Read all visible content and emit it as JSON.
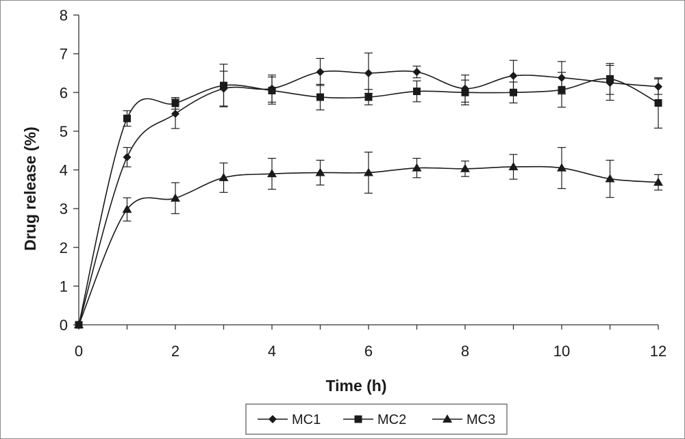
{
  "chart_data": {
    "type": "line",
    "title": "",
    "xlabel": "Time (h)",
    "ylabel": "Drug release (%)",
    "xlim": [
      0,
      12
    ],
    "ylim": [
      0,
      8
    ],
    "x_ticks": [
      "0",
      "2",
      "4",
      "6",
      "8",
      "10",
      "12"
    ],
    "y_ticks": [
      "0",
      "1",
      "2",
      "3",
      "4",
      "5",
      "6",
      "7",
      "8"
    ],
    "grid": false,
    "legend_position": "bottom",
    "x": [
      0,
      1,
      2,
      3,
      4,
      5,
      6,
      7,
      8,
      9,
      10,
      11,
      12
    ],
    "series": [
      {
        "name": "MC1",
        "marker": "diamond",
        "values": [
          0,
          4.33,
          5.45,
          6.1,
          6.1,
          6.53,
          6.5,
          6.53,
          6.1,
          6.43,
          6.38,
          6.25,
          6.15
        ],
        "error": [
          0,
          0.25,
          0.38,
          0.45,
          0.35,
          0.35,
          0.52,
          0.15,
          0.35,
          0.4,
          0.42,
          0.45,
          0.2
        ]
      },
      {
        "name": "MC2",
        "marker": "square",
        "values": [
          0,
          5.33,
          5.72,
          6.18,
          6.05,
          5.88,
          5.88,
          6.03,
          6.0,
          6.0,
          6.07,
          6.35,
          5.73
        ],
        "error": [
          0,
          0.2,
          0.15,
          0.55,
          0.35,
          0.33,
          0.2,
          0.27,
          0.32,
          0.27,
          0.45,
          0.4,
          0.65
        ]
      },
      {
        "name": "MC3",
        "marker": "triangle",
        "values": [
          0,
          2.98,
          3.27,
          3.8,
          3.9,
          3.93,
          3.93,
          4.05,
          4.03,
          4.08,
          4.05,
          3.77,
          3.68
        ],
        "error": [
          0,
          0.3,
          0.4,
          0.38,
          0.4,
          0.32,
          0.53,
          0.25,
          0.2,
          0.32,
          0.53,
          0.48,
          0.2
        ]
      }
    ]
  }
}
